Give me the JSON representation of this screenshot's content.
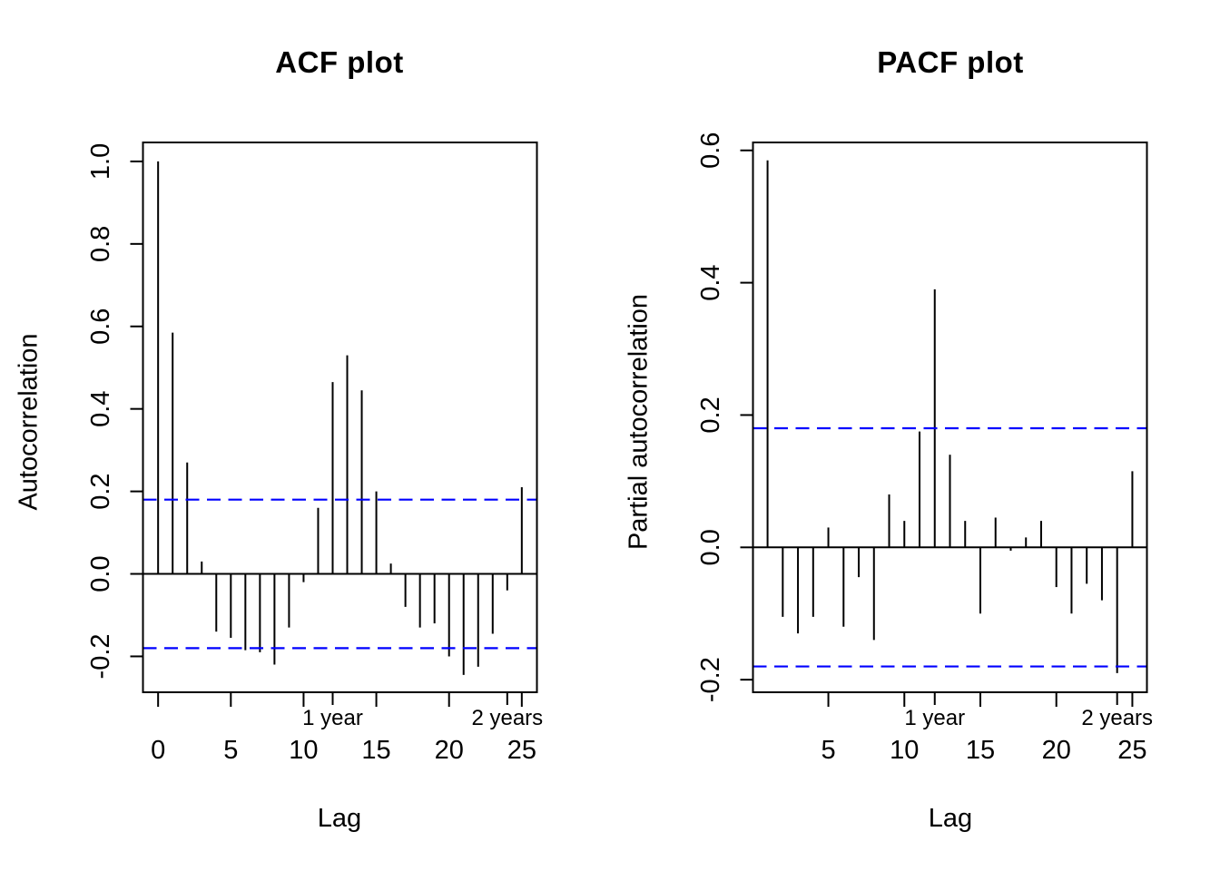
{
  "figure": {
    "background": "#ffffff",
    "line_color": "#000000",
    "confidence_line_color": "#0000ff",
    "season_label_color": "#808080"
  },
  "chart_data": [
    {
      "type": "bar",
      "variant": "stem",
      "title": "ACF plot",
      "xlabel": "Lag",
      "ylabel": "Autocorrelation",
      "x": [
        0,
        1,
        2,
        3,
        4,
        5,
        6,
        7,
        8,
        9,
        10,
        11,
        12,
        13,
        14,
        15,
        16,
        17,
        18,
        19,
        20,
        21,
        22,
        23,
        24,
        25
      ],
      "values": [
        1.0,
        0.585,
        0.27,
        0.03,
        -0.14,
        -0.155,
        -0.185,
        -0.19,
        -0.22,
        -0.13,
        -0.02,
        0.16,
        0.465,
        0.53,
        0.445,
        0.2,
        0.025,
        -0.08,
        -0.13,
        -0.12,
        -0.2,
        -0.245,
        -0.225,
        -0.145,
        -0.04,
        0.21
      ],
      "confidence_bound": 0.18,
      "confidence_style": "dashed",
      "xticks": [
        0,
        5,
        10,
        15,
        20,
        25
      ],
      "xtick_labels": [
        "0",
        "5",
        "10",
        "15",
        "20",
        "25"
      ],
      "yticks": [
        -0.2,
        0.0,
        0.2,
        0.4,
        0.6,
        0.8,
        1.0
      ],
      "ytick_labels": [
        "-0.2",
        "0.0",
        "0.2",
        "0.4",
        "0.6",
        "0.8",
        "1.0"
      ],
      "xlim": [
        -1.04,
        26.04
      ],
      "ylim": [
        -0.287,
        1.046
      ],
      "grid": false,
      "legend": null,
      "season_axis": {
        "at": [
          12,
          24
        ],
        "labels": [
          "1 year",
          "2 years"
        ]
      }
    },
    {
      "type": "bar",
      "variant": "stem",
      "title": "PACF plot",
      "xlabel": "Lag",
      "ylabel": "Partial autocorrelation",
      "x": [
        1,
        2,
        3,
        4,
        5,
        6,
        7,
        8,
        9,
        10,
        11,
        12,
        13,
        14,
        15,
        16,
        17,
        18,
        19,
        20,
        21,
        22,
        23,
        24,
        25
      ],
      "values": [
        0.585,
        -0.105,
        -0.13,
        -0.105,
        0.03,
        -0.12,
        -0.045,
        -0.14,
        0.08,
        0.04,
        0.175,
        0.39,
        0.14,
        0.04,
        -0.1,
        0.045,
        -0.005,
        0.015,
        0.04,
        -0.06,
        -0.1,
        -0.055,
        -0.08,
        -0.19,
        0.115
      ],
      "confidence_bound": 0.18,
      "confidence_style": "dashed",
      "xticks": [
        5,
        10,
        15,
        20,
        25
      ],
      "xtick_labels": [
        "5",
        "10",
        "15",
        "20",
        "25"
      ],
      "yticks": [
        -0.2,
        0.0,
        0.2,
        0.4,
        0.6
      ],
      "ytick_labels": [
        "-0.2",
        "0.0",
        "0.2",
        "0.4",
        "0.6"
      ],
      "xlim": [
        0.04,
        25.96
      ],
      "ylim": [
        -0.219,
        0.612
      ],
      "grid": false,
      "legend": null,
      "season_axis": {
        "at": [
          12,
          24
        ],
        "labels": [
          "1 year",
          "2 years"
        ]
      }
    }
  ]
}
